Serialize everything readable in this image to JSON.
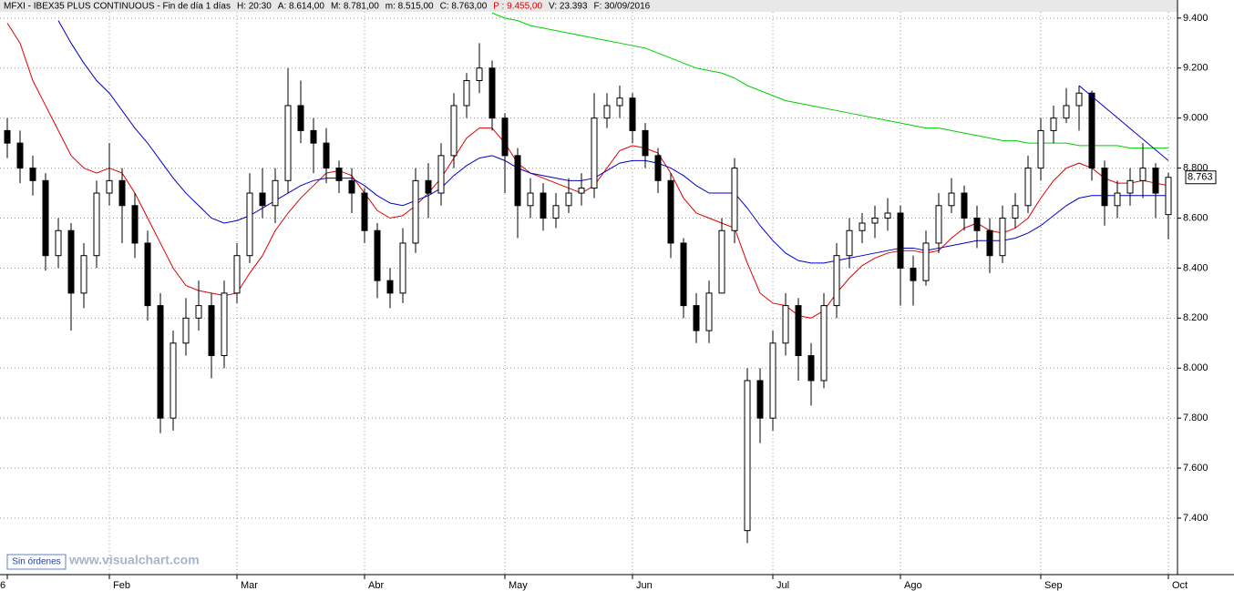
{
  "chart_data": {
    "type": "candlestick",
    "header": [
      "MFXI - IBEX35 PLUS CONTINUOUS - Fin de día 1 días",
      "H: 20:30",
      "A: 8.614,00",
      "M: 8.781,00",
      "m: 8.515,00",
      "C: 8.763,00",
      "P : 9.455,00",
      "V: 23.393",
      "F: 30/09/2016"
    ],
    "header_highlight_color": "#e00000",
    "button": "Sin órdenes",
    "watermark": "www.visualchart.com",
    "categories": [
      "6",
      null,
      null,
      null,
      null,
      null,
      null,
      null,
      "Feb",
      null,
      null,
      null,
      null,
      null,
      null,
      null,
      null,
      null,
      "Mar",
      null,
      null,
      null,
      null,
      null,
      null,
      null,
      null,
      null,
      "Abr",
      null,
      null,
      null,
      null,
      null,
      null,
      null,
      null,
      null,
      null,
      "May",
      null,
      null,
      null,
      null,
      null,
      null,
      null,
      null,
      null,
      "Jun",
      null,
      null,
      null,
      null,
      null,
      null,
      null,
      null,
      null,
      null,
      "Jul",
      null,
      null,
      null,
      null,
      null,
      null,
      null,
      null,
      null,
      "Ago",
      null,
      null,
      null,
      null,
      null,
      null,
      null,
      null,
      null,
      null,
      "Sep",
      null,
      null,
      null,
      null,
      null,
      null,
      null,
      null,
      null,
      "Oct"
    ],
    "ohlc": {
      "open": [
        8950,
        8900,
        8800,
        8750,
        8450,
        8550,
        8300,
        8450,
        8700,
        8750,
        8650,
        8500,
        8250,
        7800,
        8100,
        8200,
        8250,
        8050,
        8300,
        8450,
        8700,
        8650,
        8750,
        9050,
        8950,
        8900,
        8800,
        8750,
        8700,
        8550,
        8350,
        8300,
        8500,
        8750,
        8700,
        8850,
        9050,
        9150,
        9200,
        9000,
        8850,
        8650,
        8700,
        8600,
        8650,
        8700,
        8720,
        9000,
        9050,
        9080,
        8950,
        8850,
        8750,
        8500,
        8250,
        8150,
        8300,
        8550,
        7350,
        7950,
        7800,
        8100,
        8250,
        8050,
        7950,
        8250,
        8450,
        8550,
        8580,
        8600,
        8620,
        8400,
        8350,
        8500,
        8650,
        8700,
        8600,
        8550,
        8450,
        8600,
        8650,
        8800,
        8950,
        9000,
        9050,
        9100,
        8800,
        8650,
        8700,
        8750,
        8800,
        8614
      ],
      "high": [
        9000,
        8950,
        8850,
        8780,
        8600,
        8580,
        8500,
        8750,
        8900,
        8800,
        8700,
        8550,
        8300,
        8150,
        8280,
        8350,
        8300,
        8350,
        8500,
        8780,
        8800,
        8800,
        9200,
        9150,
        9000,
        8960,
        8830,
        8800,
        8720,
        8580,
        8400,
        8560,
        8800,
        8820,
        8900,
        9100,
        9180,
        9300,
        9230,
        9020,
        8880,
        8760,
        8740,
        8700,
        8760,
        8780,
        9100,
        9100,
        9130,
        9100,
        8980,
        8880,
        8780,
        8520,
        8300,
        8350,
        8600,
        8840,
        8000,
        8000,
        8150,
        8300,
        8280,
        8100,
        8300,
        8500,
        8600,
        8620,
        8650,
        8680,
        8650,
        8450,
        8550,
        8700,
        8760,
        8730,
        8650,
        8600,
        8650,
        8700,
        8850,
        9000,
        9050,
        9120,
        9130,
        9110,
        8830,
        8750,
        8800,
        8900,
        8820,
        8781
      ],
      "low": [
        8840,
        8740,
        8690,
        8390,
        8400,
        8150,
        8240,
        8400,
        8650,
        8500,
        8440,
        8190,
        7740,
        7750,
        8050,
        8150,
        7960,
        8000,
        8260,
        8420,
        8600,
        8580,
        8700,
        8900,
        8780,
        8740,
        8700,
        8620,
        8500,
        8280,
        8240,
        8260,
        8460,
        8600,
        8650,
        8800,
        9000,
        9100,
        8950,
        8700,
        8520,
        8600,
        8550,
        8560,
        8620,
        8650,
        8680,
        8960,
        9000,
        8900,
        8800,
        8700,
        8440,
        8200,
        8100,
        8100,
        8500,
        8500,
        7300,
        7700,
        7750,
        8050,
        7950,
        7850,
        7920,
        8200,
        8400,
        8500,
        8520,
        8550,
        8250,
        8250,
        8330,
        8460,
        8620,
        8550,
        8480,
        8380,
        8420,
        8560,
        8620,
        8750,
        8900,
        8980,
        8950,
        8750,
        8570,
        8600,
        8650,
        8680,
        8600,
        8515
      ],
      "close": [
        8900,
        8800,
        8750,
        8450,
        8550,
        8300,
        8450,
        8700,
        8750,
        8650,
        8500,
        8250,
        7800,
        8100,
        8200,
        8250,
        8050,
        8300,
        8450,
        8700,
        8650,
        8750,
        9050,
        8950,
        8900,
        8800,
        8750,
        8700,
        8550,
        8350,
        8300,
        8500,
        8750,
        8700,
        8850,
        9050,
        9150,
        9200,
        9000,
        8850,
        8650,
        8700,
        8600,
        8650,
        8700,
        8720,
        9000,
        9050,
        9080,
        8950,
        8850,
        8750,
        8500,
        8250,
        8150,
        8300,
        8550,
        8800,
        7950,
        7800,
        8100,
        8250,
        8050,
        7950,
        8250,
        8450,
        8550,
        8580,
        8600,
        8620,
        8400,
        8350,
        8500,
        8650,
        8700,
        8600,
        8550,
        8450,
        8600,
        8650,
        8800,
        8950,
        9000,
        9050,
        9100,
        8800,
        8650,
        8700,
        8750,
        8800,
        8700,
        8763
      ]
    },
    "indicators": [
      {
        "color": "#e00000",
        "values": [
          9380,
          9300,
          9150,
          9050,
          8950,
          8850,
          8800,
          8780,
          8800,
          8780,
          8700,
          8600,
          8500,
          8400,
          8330,
          8310,
          8300,
          8290,
          8300,
          8380,
          8450,
          8550,
          8620,
          8680,
          8730,
          8780,
          8790,
          8770,
          8700,
          8630,
          8600,
          8610,
          8650,
          8700,
          8760,
          8840,
          8920,
          8960,
          8960,
          8900,
          8820,
          8780,
          8760,
          8740,
          8720,
          8700,
          8730,
          8800,
          8870,
          8890,
          8880,
          8860,
          8780,
          8680,
          8620,
          8600,
          8580,
          8560,
          8420,
          8300,
          8260,
          8250,
          8210,
          8200,
          8230,
          8300,
          8360,
          8410,
          8440,
          8460,
          8470,
          8470,
          8460,
          8470,
          8520,
          8560,
          8580,
          8550,
          8540,
          8560,
          8600,
          8680,
          8750,
          8800,
          8820,
          8800,
          8760,
          8740,
          8740,
          8750,
          8740,
          8730
        ]
      },
      {
        "color": "#0000c8",
        "values": [
          null,
          null,
          null,
          null,
          9390,
          9300,
          9220,
          9150,
          9100,
          9030,
          8960,
          8900,
          8830,
          8760,
          8700,
          8650,
          8600,
          8580,
          8590,
          8610,
          8640,
          8670,
          8700,
          8730,
          8750,
          8760,
          8760,
          8760,
          8730,
          8690,
          8660,
          8650,
          8670,
          8690,
          8720,
          8770,
          8810,
          8840,
          8850,
          8830,
          8800,
          8780,
          8770,
          8760,
          8750,
          8750,
          8760,
          8790,
          8820,
          8830,
          8830,
          8820,
          8800,
          8770,
          8730,
          8700,
          8700,
          8700,
          8640,
          8570,
          8510,
          8460,
          8430,
          8420,
          8420,
          8430,
          8440,
          8450,
          8460,
          8470,
          8480,
          8480,
          8470,
          8480,
          8490,
          8500,
          8510,
          8510,
          8510,
          8520,
          8540,
          8570,
          8610,
          8650,
          8680,
          8690,
          8690,
          8690,
          8690,
          8690,
          8690,
          8690
        ]
      },
      {
        "color": "#00d000",
        "values": [
          null,
          null,
          null,
          null,
          null,
          null,
          null,
          null,
          null,
          null,
          null,
          null,
          null,
          null,
          null,
          null,
          null,
          null,
          null,
          null,
          null,
          null,
          null,
          null,
          null,
          null,
          null,
          null,
          null,
          null,
          null,
          null,
          null,
          null,
          null,
          null,
          null,
          null,
          9420,
          9400,
          9390,
          9370,
          9360,
          9350,
          9340,
          9330,
          9320,
          9310,
          9300,
          9290,
          9280,
          9260,
          9240,
          9220,
          9200,
          9190,
          9180,
          9160,
          9130,
          9110,
          9090,
          9070,
          9060,
          9050,
          9040,
          9030,
          9020,
          9010,
          9000,
          8990,
          8980,
          8970,
          8960,
          8960,
          8950,
          8940,
          8930,
          8920,
          8910,
          8910,
          8900,
          8900,
          8900,
          8900,
          8890,
          8890,
          8890,
          8890,
          8880,
          8880,
          8880,
          8880
        ]
      }
    ],
    "trendline": {
      "color": "#0000c8",
      "x": [
        84,
        91
      ],
      "values": [
        9130,
        8830
      ]
    },
    "last_price": {
      "value": 8763,
      "label": "8.763"
    },
    "ylim": [
      7174,
      9425
    ],
    "yticks": [
      {
        "value": 9400,
        "label": "9.400"
      },
      {
        "value": 9200,
        "label": "9.200"
      },
      {
        "value": 9000,
        "label": "9.000"
      },
      {
        "value": 8800,
        "label": "8.800"
      },
      {
        "value": 8600,
        "label": "8.600"
      },
      {
        "value": 8400,
        "label": "8.400"
      },
      {
        "value": 8200,
        "label": "8.200"
      },
      {
        "value": 8000,
        "label": "8.000"
      },
      {
        "value": 7800,
        "label": "7.800"
      },
      {
        "value": 7600,
        "label": "7.600"
      },
      {
        "value": 7400,
        "label": "7.400"
      }
    ],
    "grid": true
  }
}
